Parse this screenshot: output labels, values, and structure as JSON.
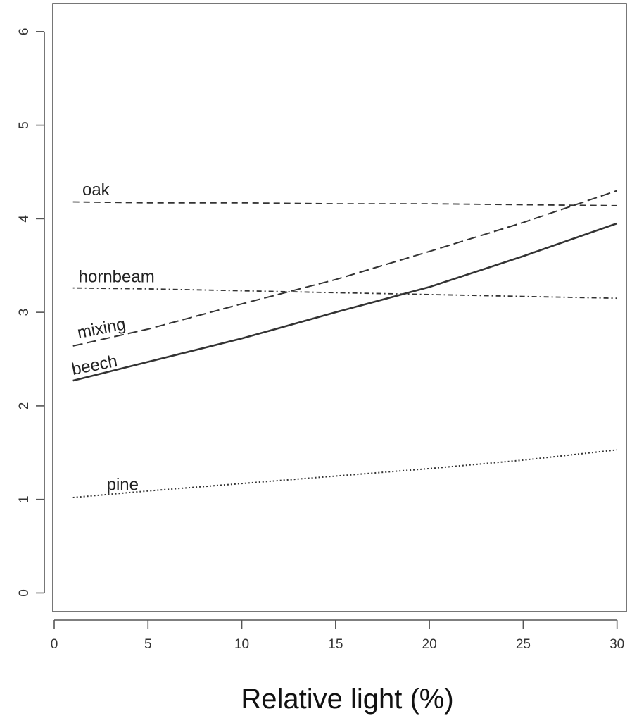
{
  "chart_data": {
    "type": "line",
    "xlabel": "Relative light (%)",
    "ylabel": "",
    "title": "",
    "xlim": [
      0,
      30.5
    ],
    "ylim": [
      -0.2,
      6.3
    ],
    "xticks": [
      0,
      5,
      10,
      15,
      20,
      25,
      30
    ],
    "yticks": [
      0,
      1,
      2,
      3,
      4,
      5,
      6
    ],
    "grid": false,
    "legend": "inline labels",
    "series": [
      {
        "name": "oak",
        "style": "dashed",
        "x": [
          1,
          5,
          10,
          15,
          20,
          25,
          30
        ],
        "y": [
          4.18,
          4.17,
          4.17,
          4.16,
          4.16,
          4.15,
          4.14
        ],
        "label_at": [
          1.5,
          4.25
        ],
        "label_angle": 0
      },
      {
        "name": "hornbeam",
        "style": "dashdot",
        "x": [
          1,
          5,
          10,
          15,
          20,
          25,
          30
        ],
        "y": [
          3.26,
          3.25,
          3.23,
          3.21,
          3.19,
          3.17,
          3.15
        ],
        "label_at": [
          1.3,
          3.32
        ],
        "label_angle": 0
      },
      {
        "name": "mixing",
        "style": "longdash",
        "x": [
          1,
          5,
          10,
          15,
          20,
          25,
          30
        ],
        "y": [
          2.64,
          2.82,
          3.09,
          3.35,
          3.65,
          3.96,
          4.3
        ],
        "label_at": [
          1.3,
          2.72
        ],
        "label_angle": -11
      },
      {
        "name": "beech",
        "style": "solid",
        "x": [
          1,
          5,
          10,
          15,
          20,
          25,
          30
        ],
        "y": [
          2.27,
          2.47,
          2.72,
          3.0,
          3.27,
          3.6,
          3.95
        ],
        "label_at": [
          1.0,
          2.33
        ],
        "label_angle": -11
      },
      {
        "name": "pine",
        "style": "dotted",
        "x": [
          1,
          5,
          10,
          15,
          20,
          25,
          30
        ],
        "y": [
          1.02,
          1.09,
          1.17,
          1.25,
          1.33,
          1.42,
          1.53
        ],
        "label_at": [
          2.8,
          1.1
        ],
        "label_angle": 0
      }
    ]
  }
}
